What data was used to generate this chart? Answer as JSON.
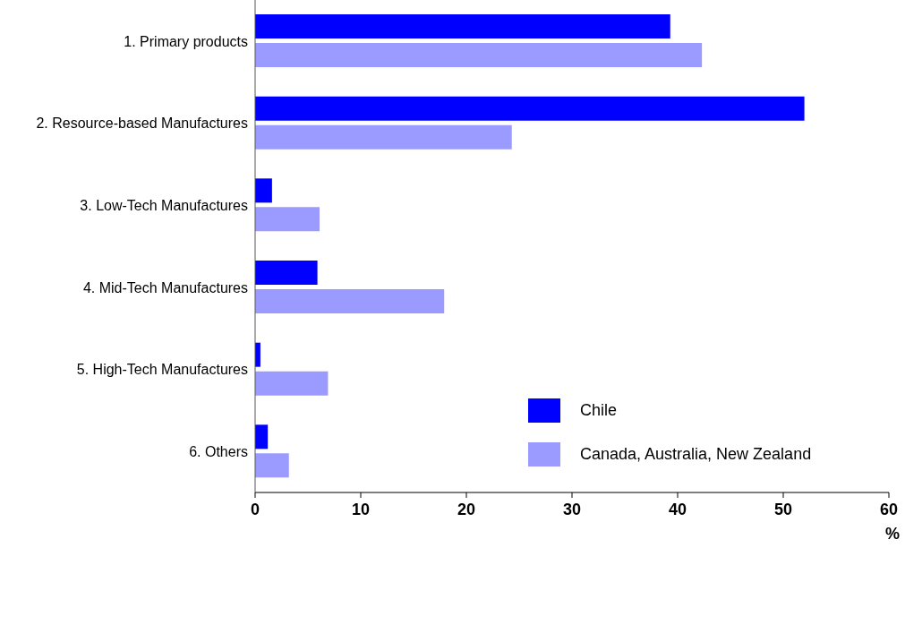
{
  "chart_data": {
    "type": "bar",
    "orientation": "horizontal",
    "xlabel": "%",
    "categories": [
      "1. Primary products",
      "2. Resource-based Manufactures",
      "3. Low-Tech Manufactures",
      "4. Mid-Tech Manufactures",
      "5. High-Tech Manufactures",
      "6. Others"
    ],
    "series": [
      {
        "name": "Chile",
        "color": "#0000ff",
        "values": [
          39.3,
          52.0,
          1.6,
          5.9,
          0.5,
          1.2
        ]
      },
      {
        "name": "Canada, Australia, New Zealand",
        "color": "#9b9bff",
        "values": [
          42.3,
          24.3,
          6.1,
          17.9,
          6.9,
          3.2
        ]
      }
    ],
    "xlim": [
      0,
      60
    ],
    "xticks": [
      0,
      10,
      20,
      30,
      40,
      50,
      60
    ],
    "grid": false,
    "legend": "right"
  }
}
